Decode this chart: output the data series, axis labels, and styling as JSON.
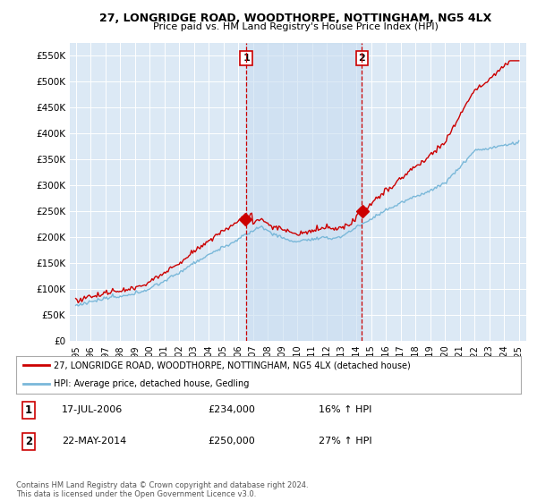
{
  "title_line1": "27, LONGRIDGE ROAD, WOODTHORPE, NOTTINGHAM, NG5 4LX",
  "title_line2": "Price paid vs. HM Land Registry's House Price Index (HPI)",
  "background_color": "#ffffff",
  "plot_bg_color": "#dce9f5",
  "shaded_region_color": "#c8ddf0",
  "grid_color": "#ffffff",
  "ylim": [
    0,
    575000
  ],
  "ytick_labels": [
    "£0",
    "£50K",
    "£100K",
    "£150K",
    "£200K",
    "£250K",
    "£300K",
    "£350K",
    "£400K",
    "£450K",
    "£500K",
    "£550K"
  ],
  "ytick_values": [
    0,
    50000,
    100000,
    150000,
    200000,
    250000,
    300000,
    350000,
    400000,
    450000,
    500000,
    550000
  ],
  "legend_line1_label": "27, LONGRIDGE ROAD, WOODTHORPE, NOTTINGHAM, NG5 4LX (detached house)",
  "legend_line2_label": "HPI: Average price, detached house, Gedling",
  "annotation1_date": "17-JUL-2006",
  "annotation1_price": "£234,000",
  "annotation1_hpi": "16% ↑ HPI",
  "annotation2_date": "22-MAY-2014",
  "annotation2_price": "£250,000",
  "annotation2_hpi": "27% ↑ HPI",
  "footer": "Contains HM Land Registry data © Crown copyright and database right 2024.\nThis data is licensed under the Open Government Licence v3.0.",
  "hpi_line_color": "#7ab8d9",
  "price_line_color": "#cc0000",
  "vline_color": "#cc0000",
  "box_color": "#cc0000",
  "sale1_year": 2006.54,
  "sale2_year": 2014.38,
  "sale1_price": 234000,
  "sale2_price": 250000
}
